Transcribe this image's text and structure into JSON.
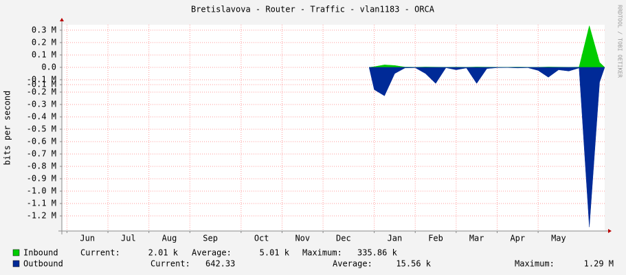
{
  "chart_data": {
    "type": "area",
    "title": "Bretislavova - Router - Traffic - vlan1183 - ORCA",
    "y_label": "bits per second",
    "watermark": "RRDTOOL / TOBI OETIKER",
    "categories": [
      null,
      null,
      "Jun",
      null,
      null,
      null,
      "Jul",
      null,
      null,
      null,
      "Aug",
      null,
      null,
      null,
      "Sep",
      null,
      null,
      null,
      null,
      "Oct",
      null,
      null,
      null,
      "Nov",
      null,
      null,
      null,
      "Dec",
      null,
      null,
      null,
      null,
      "Jan",
      null,
      null,
      null,
      "Feb",
      null,
      null,
      null,
      "Mar",
      null,
      null,
      null,
      "Apr",
      null,
      null,
      null,
      "May",
      null,
      null,
      null,
      null
    ],
    "ylim": [
      -1322000,
      344000
    ],
    "yticks": [
      {
        "value": 300000,
        "label": "0.3 M"
      },
      {
        "value": 200000,
        "label": "0.2 M"
      },
      {
        "value": 100000,
        "label": "0.1 M"
      },
      {
        "value": 0,
        "label": "0.0"
      },
      {
        "value": -100000,
        "label": "-0.1 M"
      },
      {
        "value": -140000,
        "label": "-0.1 M"
      },
      {
        "value": -200000,
        "label": "-0.2 M"
      },
      {
        "value": -300000,
        "label": "-0.3 M"
      },
      {
        "value": -400000,
        "label": "-0.4 M"
      },
      {
        "value": -500000,
        "label": "-0.5 M"
      },
      {
        "value": -600000,
        "label": "-0.6 M"
      },
      {
        "value": -700000,
        "label": "-0.7 M"
      },
      {
        "value": -800000,
        "label": "-0.8 M"
      },
      {
        "value": -900000,
        "label": "-0.9 M"
      },
      {
        "value": -1000000,
        "label": "-1.0 M"
      },
      {
        "value": -1100000,
        "label": "-1.1 M"
      },
      {
        "value": -1200000,
        "label": "-1.2 M"
      }
    ],
    "grid": true,
    "series": [
      {
        "name": "Inbound",
        "color": "#00cc00",
        "values": [
          null,
          null,
          null,
          null,
          null,
          null,
          null,
          null,
          null,
          null,
          null,
          null,
          null,
          null,
          null,
          null,
          null,
          null,
          null,
          null,
          null,
          null,
          null,
          null,
          null,
          null,
          null,
          null,
          null,
          null,
          5000,
          20000,
          15000,
          2000,
          1000,
          3000,
          2000,
          1000,
          2000,
          1000,
          3000,
          2000,
          1000,
          1000,
          2000,
          1000,
          1000,
          3000,
          2000,
          1000,
          2000,
          335860,
          40000
        ],
        "stats": [
          {
            "label": "Current:",
            "value": "2.01 k"
          },
          {
            "label": "Average:",
            "value": "5.01 k"
          },
          {
            "label": "Maximum:",
            "value": "335.86 k"
          }
        ]
      },
      {
        "name": "Outbound",
        "color": "#002a97",
        "values": [
          null,
          null,
          null,
          null,
          null,
          null,
          null,
          null,
          null,
          null,
          null,
          null,
          null,
          null,
          null,
          null,
          null,
          null,
          null,
          null,
          null,
          null,
          null,
          null,
          null,
          null,
          null,
          null,
          null,
          null,
          -180000,
          -230000,
          -50000,
          -5000,
          -3000,
          -50000,
          -130000,
          -3000,
          -20000,
          -5000,
          -130000,
          -10000,
          -3000,
          -2000,
          -5000,
          -3000,
          -25000,
          -80000,
          -20000,
          -30000,
          -5000,
          -1290000,
          -120000
        ],
        "stats": [
          {
            "label": "Current:",
            "value": "642.33"
          },
          {
            "label": "Average:",
            "value": "15.56 k"
          },
          {
            "label": "Maximum:",
            "value": "1.29 M"
          }
        ]
      }
    ]
  }
}
